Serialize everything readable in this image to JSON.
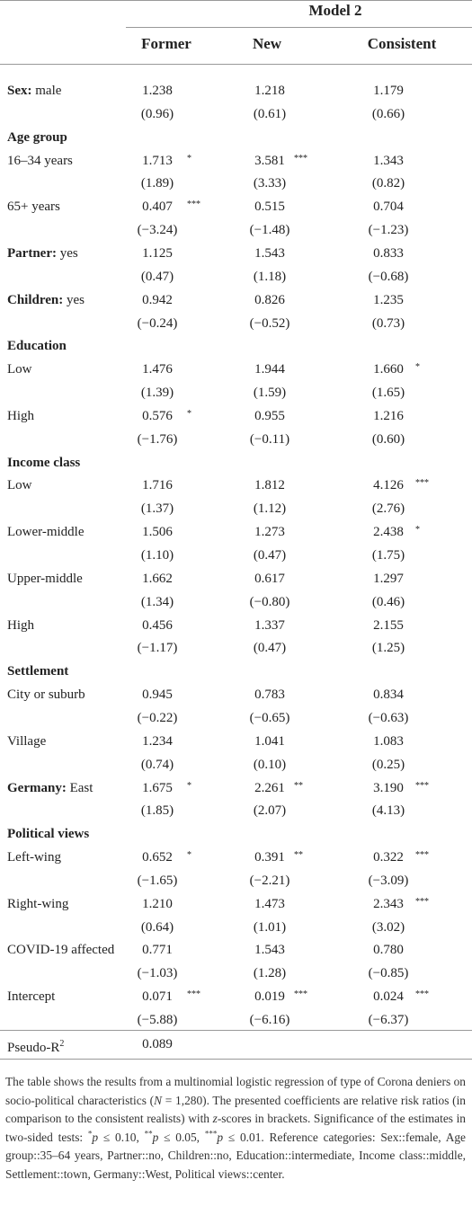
{
  "header": {
    "model": "Model 2",
    "columns": [
      "Former",
      "New",
      "Consistent"
    ]
  },
  "rows": [
    {
      "bold": "Sex:",
      "label": "male",
      "cells": [
        {
          "value": "1.238"
        },
        {
          "value": "1.218"
        },
        {
          "value": "1.179"
        }
      ],
      "z": [
        "(0.96)",
        "(0.61)",
        "(0.66)"
      ]
    },
    {
      "section": "Age group"
    },
    {
      "label": "16–34 years",
      "cells": [
        {
          "value": "1.713",
          "sig": "*"
        },
        {
          "value": "3.581",
          "sig": "***"
        },
        {
          "value": "1.343"
        }
      ],
      "z": [
        "(1.89)",
        "(3.33)",
        "(0.82)"
      ]
    },
    {
      "label": "65+ years",
      "cells": [
        {
          "value": "0.407",
          "sig": "***"
        },
        {
          "value": "0.515"
        },
        {
          "value": "0.704"
        }
      ],
      "z": [
        "(−3.24)",
        "(−1.48)",
        "(−1.23)"
      ]
    },
    {
      "bold": "Partner:",
      "label": "yes",
      "cells": [
        {
          "value": "1.125"
        },
        {
          "value": "1.543"
        },
        {
          "value": "0.833"
        }
      ],
      "z": [
        "(0.47)",
        "(1.18)",
        "(−0.68)"
      ]
    },
    {
      "bold": "Children:",
      "label": "yes",
      "cells": [
        {
          "value": "0.942"
        },
        {
          "value": "0.826"
        },
        {
          "value": "1.235"
        }
      ],
      "z": [
        "(−0.24)",
        "(−0.52)",
        "(0.73)"
      ]
    },
    {
      "section": "Education"
    },
    {
      "label": "Low",
      "cells": [
        {
          "value": "1.476"
        },
        {
          "value": "1.944"
        },
        {
          "value": "1.660",
          "sig": "*"
        }
      ],
      "z": [
        "(1.39)",
        "(1.59)",
        "(1.65)"
      ]
    },
    {
      "label": "High",
      "cells": [
        {
          "value": "0.576",
          "sig": "*"
        },
        {
          "value": "0.955"
        },
        {
          "value": "1.216"
        }
      ],
      "z": [
        "(−1.76)",
        "(−0.11)",
        "(0.60)"
      ]
    },
    {
      "section": "Income class"
    },
    {
      "label": "Low",
      "cells": [
        {
          "value": "1.716"
        },
        {
          "value": "1.812"
        },
        {
          "value": "4.126",
          "sig": "***"
        }
      ],
      "z": [
        "(1.37)",
        "(1.12)",
        "(2.76)"
      ]
    },
    {
      "label": "Lower-middle",
      "cells": [
        {
          "value": "1.506"
        },
        {
          "value": "1.273"
        },
        {
          "value": "2.438",
          "sig": "*"
        }
      ],
      "z": [
        "(1.10)",
        "(0.47)",
        "(1.75)"
      ]
    },
    {
      "label": "Upper-middle",
      "cells": [
        {
          "value": "1.662"
        },
        {
          "value": "0.617"
        },
        {
          "value": "1.297"
        }
      ],
      "z": [
        "(1.34)",
        "(−0.80)",
        "(0.46)"
      ]
    },
    {
      "label": "High",
      "cells": [
        {
          "value": "0.456"
        },
        {
          "value": "1.337"
        },
        {
          "value": "2.155"
        }
      ],
      "z": [
        "(−1.17)",
        "(0.47)",
        "(1.25)"
      ]
    },
    {
      "section": "Settlement"
    },
    {
      "label": "City or suburb",
      "cells": [
        {
          "value": "0.945"
        },
        {
          "value": "0.783"
        },
        {
          "value": "0.834"
        }
      ],
      "z": [
        "(−0.22)",
        "(−0.65)",
        "(−0.63)"
      ]
    },
    {
      "label": "Village",
      "cells": [
        {
          "value": "1.234"
        },
        {
          "value": "1.041"
        },
        {
          "value": "1.083"
        }
      ],
      "z": [
        "(0.74)",
        "(0.10)",
        "(0.25)"
      ]
    },
    {
      "bold": "Germany:",
      "label": "East",
      "cells": [
        {
          "value": "1.675",
          "sig": "*"
        },
        {
          "value": "2.261",
          "sig": "**"
        },
        {
          "value": "3.190",
          "sig": "***"
        }
      ],
      "z": [
        "(1.85)",
        "(2.07)",
        "(4.13)"
      ]
    },
    {
      "section": "Political views"
    },
    {
      "label": "Left-wing",
      "cells": [
        {
          "value": "0.652",
          "sig": "*"
        },
        {
          "value": "0.391",
          "sig": "**"
        },
        {
          "value": "0.322",
          "sig": "***"
        }
      ],
      "z": [
        "(−1.65)",
        "(−2.21)",
        "(−3.09)"
      ]
    },
    {
      "label": "Right-wing",
      "cells": [
        {
          "value": "1.210"
        },
        {
          "value": "1.473"
        },
        {
          "value": "2.343",
          "sig": "***"
        }
      ],
      "z": [
        "(0.64)",
        "(1.01)",
        "(3.02)"
      ]
    },
    {
      "label": "COVID-19 affected",
      "cells": [
        {
          "value": "0.771"
        },
        {
          "value": "1.543"
        },
        {
          "value": "0.780"
        }
      ],
      "z": [
        "(−1.03)",
        "(1.28)",
        "(−0.85)"
      ]
    },
    {
      "label": "Intercept",
      "cells": [
        {
          "value": "0.071",
          "sig": "***"
        },
        {
          "value": "0.019",
          "sig": "***"
        },
        {
          "value": "0.024",
          "sig": "***"
        }
      ],
      "z": [
        "(−5.88)",
        "(−6.16)",
        "(−6.37)"
      ]
    }
  ],
  "pseudo": {
    "label": "Pseudo-R",
    "sup": "2",
    "value": "0.089"
  },
  "footnote": [
    {
      "text": "The table shows the results from a multinomial logistic regression of type of Corona deniers on socio-political characteristics ("
    },
    {
      "text": "N",
      "style": "italic"
    },
    {
      "text": " = 1,280). The presented coefficients are relative risk ratios (in comparison to the consistent realists) with "
    },
    {
      "text": "z",
      "style": "italic"
    },
    {
      "text": "-scores in brackets. Significance of the estimates in two-sided tests: "
    },
    {
      "text": "*",
      "style": "sup"
    },
    {
      "text": "p",
      "style": "italic"
    },
    {
      "text": " ≤ 0.10, "
    },
    {
      "text": "**",
      "style": "sup"
    },
    {
      "text": "p",
      "style": "italic"
    },
    {
      "text": " ≤ 0.05, "
    },
    {
      "text": "***",
      "style": "sup"
    },
    {
      "text": "p",
      "style": "italic"
    },
    {
      "text": " ≤ 0.01. Reference categories: Sex::female, Age group::35–64 years, Partner::no, Children::no, Education::intermediate, Income class::middle, Settlement::town, Germany::West, Political views::center."
    }
  ]
}
